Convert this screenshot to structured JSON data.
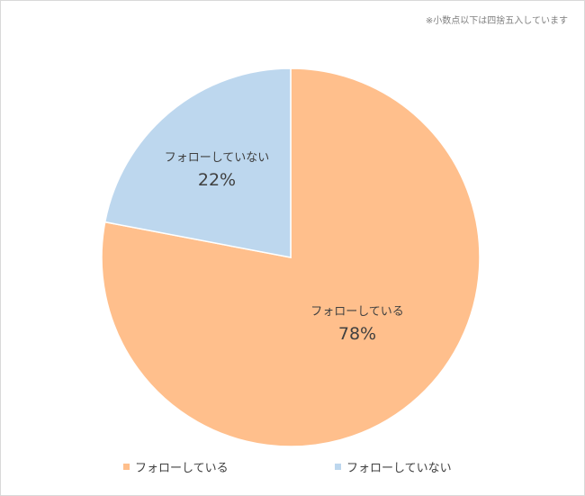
{
  "note": "※小数点以下は四捨五入しています",
  "chart_data": {
    "type": "pie",
    "title": "",
    "start_angle_deg": 0,
    "direction": "clockwise",
    "legend_position": "bottom",
    "slices": [
      {
        "label": "フォローしている",
        "value": 78,
        "display": "78%",
        "color": "#FFBF8C"
      },
      {
        "label": "フォローしていない",
        "value": 22,
        "display": "22%",
        "color": "#BDD7EE"
      }
    ]
  }
}
